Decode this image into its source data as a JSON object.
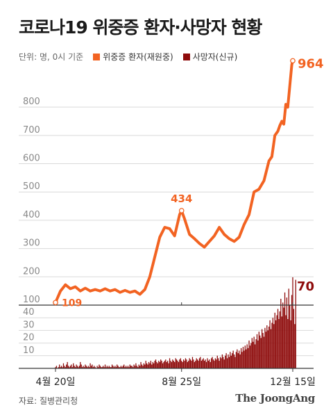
{
  "title": "코로나19 위중증 환자·사망자 현황",
  "legend": {
    "unit": "단위: 명, 0시 기준",
    "series_1": "위중증 환자(재원중)",
    "series_2": "사망자(신규)"
  },
  "source": "자료: 질병관리청",
  "brand": "The JoongAng",
  "colors": {
    "critical": "#f26322",
    "deaths": "#8e0b0b",
    "grid": "#d9d9d9"
  },
  "chart_data": [
    {
      "type": "line",
      "title": "",
      "series_name": "위중증 환자(재원중)",
      "x_labels": [
        "4월 20일",
        "8월 25일",
        "12월 15일"
      ],
      "y_ticks": [
        100,
        200,
        300,
        400,
        500,
        600,
        700,
        800
      ],
      "ylim": [
        100,
        970
      ],
      "annotations": [
        {
          "label": "109",
          "value": 109,
          "day": 0
        },
        {
          "label": "434",
          "value": 434,
          "day": 127
        },
        {
          "label": "964",
          "value": 964,
          "day": 239
        }
      ],
      "points": [
        [
          0,
          109
        ],
        [
          5,
          150
        ],
        [
          10,
          172
        ],
        [
          15,
          158
        ],
        [
          20,
          165
        ],
        [
          25,
          150
        ],
        [
          30,
          160
        ],
        [
          35,
          150
        ],
        [
          40,
          155
        ],
        [
          45,
          150
        ],
        [
          50,
          158
        ],
        [
          55,
          150
        ],
        [
          60,
          155
        ],
        [
          65,
          145
        ],
        [
          70,
          152
        ],
        [
          75,
          145
        ],
        [
          80,
          150
        ],
        [
          85,
          138
        ],
        [
          90,
          155
        ],
        [
          95,
          200
        ],
        [
          100,
          270
        ],
        [
          105,
          340
        ],
        [
          110,
          375
        ],
        [
          115,
          370
        ],
        [
          120,
          345
        ],
        [
          125,
          420
        ],
        [
          127,
          434
        ],
        [
          130,
          405
        ],
        [
          135,
          350
        ],
        [
          140,
          335
        ],
        [
          145,
          318
        ],
        [
          150,
          305
        ],
        [
          155,
          325
        ],
        [
          160,
          345
        ],
        [
          165,
          375
        ],
        [
          170,
          350
        ],
        [
          175,
          335
        ],
        [
          180,
          325
        ],
        [
          185,
          340
        ],
        [
          190,
          385
        ],
        [
          195,
          420
        ],
        [
          200,
          500
        ],
        [
          205,
          510
        ],
        [
          210,
          540
        ],
        [
          215,
          610
        ],
        [
          218,
          625
        ],
        [
          221,
          700
        ],
        [
          224,
          715
        ],
        [
          226,
          735
        ],
        [
          228,
          750
        ],
        [
          230,
          740
        ],
        [
          232,
          810
        ],
        [
          234,
          800
        ],
        [
          236,
          875
        ],
        [
          238,
          950
        ],
        [
          239,
          964
        ]
      ]
    },
    {
      "type": "bar",
      "title": "",
      "series_name": "사망자(신규)",
      "y_ticks": [
        10,
        20,
        30,
        40
      ],
      "ylim": [
        0,
        48
      ],
      "annotations": [
        {
          "label": "70",
          "value": 70,
          "day": 239
        }
      ],
      "daily_values": [
        1,
        2,
        0,
        1,
        3,
        1,
        2,
        1,
        4,
        2,
        1,
        3,
        5,
        2,
        1,
        2,
        3,
        1,
        4,
        2,
        1,
        3,
        2,
        1,
        2,
        5,
        3,
        1,
        2,
        1,
        3,
        2,
        1,
        2,
        1,
        4,
        2,
        3,
        1,
        2,
        1,
        0,
        2,
        1,
        3,
        2,
        1,
        1,
        2,
        1,
        3,
        1,
        2,
        1,
        2,
        1,
        1,
        3,
        2,
        1,
        2,
        1,
        3,
        2,
        1,
        1,
        2,
        1,
        2,
        3,
        1,
        2,
        1,
        2,
        1,
        3,
        2,
        2,
        1,
        3,
        2,
        4,
        2,
        1,
        3,
        2,
        5,
        3,
        2,
        4,
        3,
        6,
        4,
        3,
        5,
        4,
        6,
        3,
        5,
        4,
        6,
        7,
        5,
        4,
        6,
        5,
        7,
        6,
        4,
        5,
        6,
        7,
        5,
        6,
        4,
        8,
        6,
        5,
        7,
        6,
        5,
        8,
        7,
        6,
        5,
        7,
        8,
        6,
        5,
        7,
        6,
        8,
        7,
        5,
        6,
        8,
        7,
        6,
        9,
        7,
        5,
        6,
        8,
        7,
        6,
        8,
        9,
        6,
        7,
        8,
        6,
        7,
        5,
        8,
        6,
        7,
        5,
        8,
        9,
        7,
        6,
        8,
        7,
        10,
        8,
        6,
        9,
        8,
        11,
        9,
        7,
        10,
        12,
        8,
        11,
        9,
        13,
        10,
        12,
        14,
        11,
        9,
        13,
        15,
        12,
        14,
        11,
        16,
        13,
        17,
        14,
        18,
        15,
        19,
        16,
        22,
        18,
        20,
        24,
        21,
        25,
        19,
        23,
        27,
        22,
        29,
        26,
        24,
        31,
        28,
        25,
        32,
        29,
        34,
        30,
        33,
        38,
        31,
        36,
        40,
        35,
        44,
        38,
        42,
        47,
        39,
        45,
        55,
        41,
        52,
        48,
        60,
        42,
        56,
        39,
        63,
        50,
        38,
        58,
        72,
        47,
        35,
        70
      ]
    }
  ]
}
